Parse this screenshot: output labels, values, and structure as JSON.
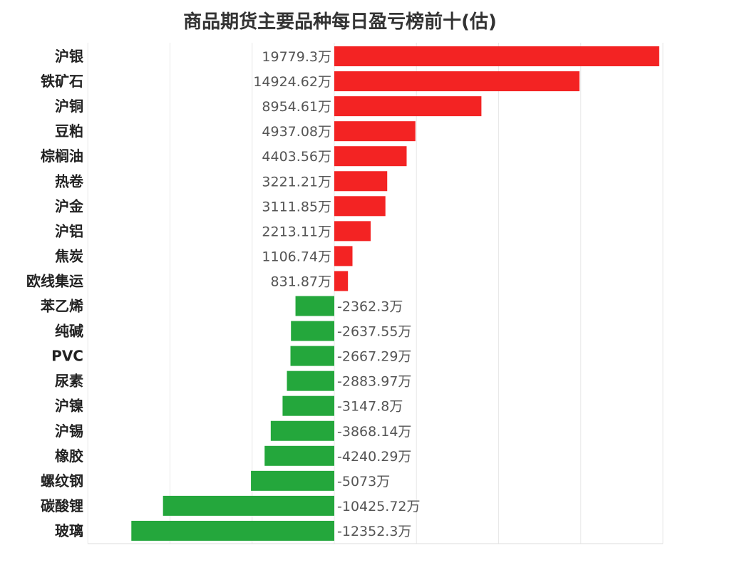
{
  "chart_data": {
    "type": "bar",
    "orientation": "horizontal",
    "title": "商品期货主要品种每日盈亏榜前十(估)",
    "unit": "万",
    "categories": [
      "沪银",
      "铁矿石",
      "沪铜",
      "豆粕",
      "棕榈油",
      "热卷",
      "沪金",
      "沪铝",
      "焦炭",
      "欧线集运",
      "苯乙烯",
      "纯碱",
      "PVC",
      "尿素",
      "沪镍",
      "沪锡",
      "橡胶",
      "螺纹钢",
      "碳酸锂",
      "玻璃"
    ],
    "values": [
      19779.3,
      14924.62,
      8954.61,
      4937.08,
      4403.56,
      3221.21,
      3111.85,
      2213.11,
      1106.74,
      831.87,
      -2362.3,
      -2637.55,
      -2667.29,
      -2883.97,
      -3147.8,
      -3868.14,
      -4240.29,
      -5073,
      -10425.72,
      -12352.3
    ],
    "value_labels": [
      "19779.3万",
      "14924.62万",
      "8954.61万",
      "4937.08万",
      "4403.56万",
      "3221.21万",
      "3111.85万",
      "2213.11万",
      "1106.74万",
      "831.87万",
      "-2362.3万",
      "-2637.55万",
      "-2667.29万",
      "-2883.97万",
      "-3147.8万",
      "-3868.14万",
      "-4240.29万",
      "-5073万",
      "-10425.72万",
      "-12352.3万"
    ],
    "xlim": [
      -15000,
      20000
    ],
    "grid": true,
    "legend": "none",
    "colors": {
      "positive": "#f32323",
      "negative": "#24a73c",
      "grid": "#e8e8e8"
    }
  }
}
